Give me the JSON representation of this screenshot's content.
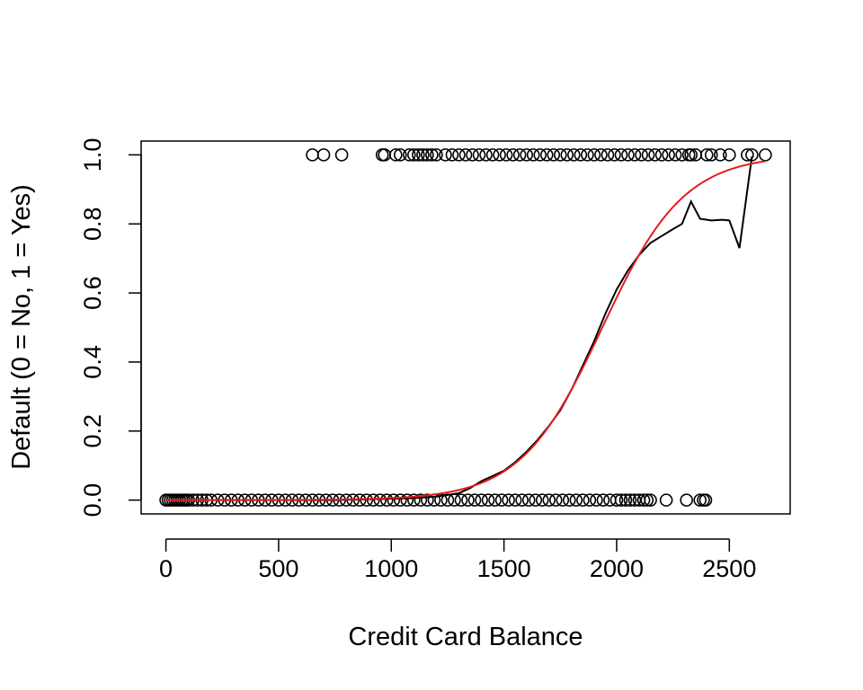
{
  "chart_data": {
    "type": "scatter",
    "title": "",
    "xlabel": "Credit Card Balance",
    "ylabel": "Default (0 = No, 1 = Yes)",
    "xlim": [
      -110,
      2770
    ],
    "ylim": [
      -0.04,
      1.04
    ],
    "x_ticks": [
      0,
      500,
      1000,
      1500,
      2000,
      2500
    ],
    "y_ticks": [
      0.0,
      0.2,
      0.4,
      0.6,
      0.8,
      1.0
    ],
    "x_tick_labels": [
      "0",
      "500",
      "1000",
      "1500",
      "2000",
      "2500"
    ],
    "y_tick_labels": [
      "0.0",
      "0.2",
      "0.4",
      "0.6",
      "0.8",
      "1.0"
    ],
    "grid": false,
    "legend": "none",
    "colors": {
      "points": "#000000",
      "empirical_line": "#000000",
      "logistic_curve": "#e41a1c"
    },
    "series": [
      {
        "kind": "points",
        "x": [
          0,
          10,
          20,
          30,
          40,
          50,
          60,
          70,
          80,
          90,
          100,
          120,
          140,
          160,
          180,
          200,
          230,
          260,
          290,
          320,
          350,
          380,
          410,
          440,
          470,
          500,
          530,
          560,
          590,
          620,
          650,
          680,
          710,
          740,
          770,
          800,
          830,
          860,
          890,
          920,
          950,
          980,
          1010,
          1040,
          1070,
          1100,
          1130,
          1160,
          1190,
          1220,
          1250,
          1280,
          1310,
          1340,
          1370,
          1400,
          1430,
          1460,
          1490,
          1520,
          1550,
          1580,
          1610,
          1640,
          1670,
          1700,
          1730,
          1760,
          1790,
          1820,
          1850,
          1880,
          1910,
          1940,
          1970,
          2000,
          2020,
          2040,
          2060,
          2080,
          2100,
          2120,
          2135,
          2150,
          2220,
          2310,
          2370,
          2385,
          2395,
          650,
          700,
          780,
          960,
          970,
          1020,
          1040,
          1080,
          1100,
          1120,
          1140,
          1160,
          1180,
          1200,
          1240,
          1270,
          1300,
          1330,
          1360,
          1390,
          1420,
          1450,
          1480,
          1510,
          1540,
          1570,
          1600,
          1630,
          1660,
          1690,
          1720,
          1750,
          1780,
          1810,
          1840,
          1870,
          1900,
          1930,
          1960,
          1990,
          2020,
          2050,
          2080,
          2110,
          2140,
          2170,
          2200,
          2230,
          2260,
          2290,
          2320,
          2330,
          2350,
          2400,
          2420,
          2460,
          2500,
          2580,
          2600,
          2660
        ],
        "y": [
          0,
          0,
          0,
          0,
          0,
          0,
          0,
          0,
          0,
          0,
          0,
          0,
          0,
          0,
          0,
          0,
          0,
          0,
          0,
          0,
          0,
          0,
          0,
          0,
          0,
          0,
          0,
          0,
          0,
          0,
          0,
          0,
          0,
          0,
          0,
          0,
          0,
          0,
          0,
          0,
          0,
          0,
          0,
          0,
          0,
          0,
          0,
          0,
          0,
          0,
          0,
          0,
          0,
          0,
          0,
          0,
          0,
          0,
          0,
          0,
          0,
          0,
          0,
          0,
          0,
          0,
          0,
          0,
          0,
          0,
          0,
          0,
          0,
          0,
          0,
          0,
          0,
          0,
          0,
          0,
          0,
          0,
          0,
          0,
          0,
          0,
          0,
          0,
          0,
          1,
          1,
          1,
          1,
          1,
          1,
          1,
          1,
          1,
          1,
          1,
          1,
          1,
          1,
          1,
          1,
          1,
          1,
          1,
          1,
          1,
          1,
          1,
          1,
          1,
          1,
          1,
          1,
          1,
          1,
          1,
          1,
          1,
          1,
          1,
          1,
          1,
          1,
          1,
          1,
          1,
          1,
          1,
          1,
          1,
          1,
          1,
          1,
          1,
          1,
          1,
          1,
          1,
          1,
          1,
          1,
          1,
          1,
          1,
          1
        ]
      },
      {
        "kind": "empirical_line",
        "x": [
          0,
          250,
          500,
          750,
          1000,
          1100,
          1200,
          1250,
          1300,
          1350,
          1400,
          1450,
          1500,
          1550,
          1600,
          1650,
          1700,
          1750,
          1800,
          1850,
          1900,
          1950,
          2000,
          2050,
          2100,
          2150,
          2200,
          2250,
          2290,
          2330,
          2370,
          2420,
          2470,
          2500,
          2545,
          2600
        ],
        "y": [
          0,
          0,
          0,
          0,
          0.004,
          0.006,
          0.01,
          0.015,
          0.02,
          0.035,
          0.055,
          0.07,
          0.085,
          0.11,
          0.14,
          0.175,
          0.215,
          0.26,
          0.32,
          0.39,
          0.46,
          0.54,
          0.61,
          0.665,
          0.71,
          0.745,
          0.765,
          0.785,
          0.8,
          0.865,
          0.815,
          0.81,
          0.812,
          0.81,
          0.73,
          0.995
        ]
      },
      {
        "kind": "logistic_curve",
        "b0": -10.65,
        "b1": 0.0055,
        "x_range": [
          0,
          2660
        ]
      }
    ]
  }
}
